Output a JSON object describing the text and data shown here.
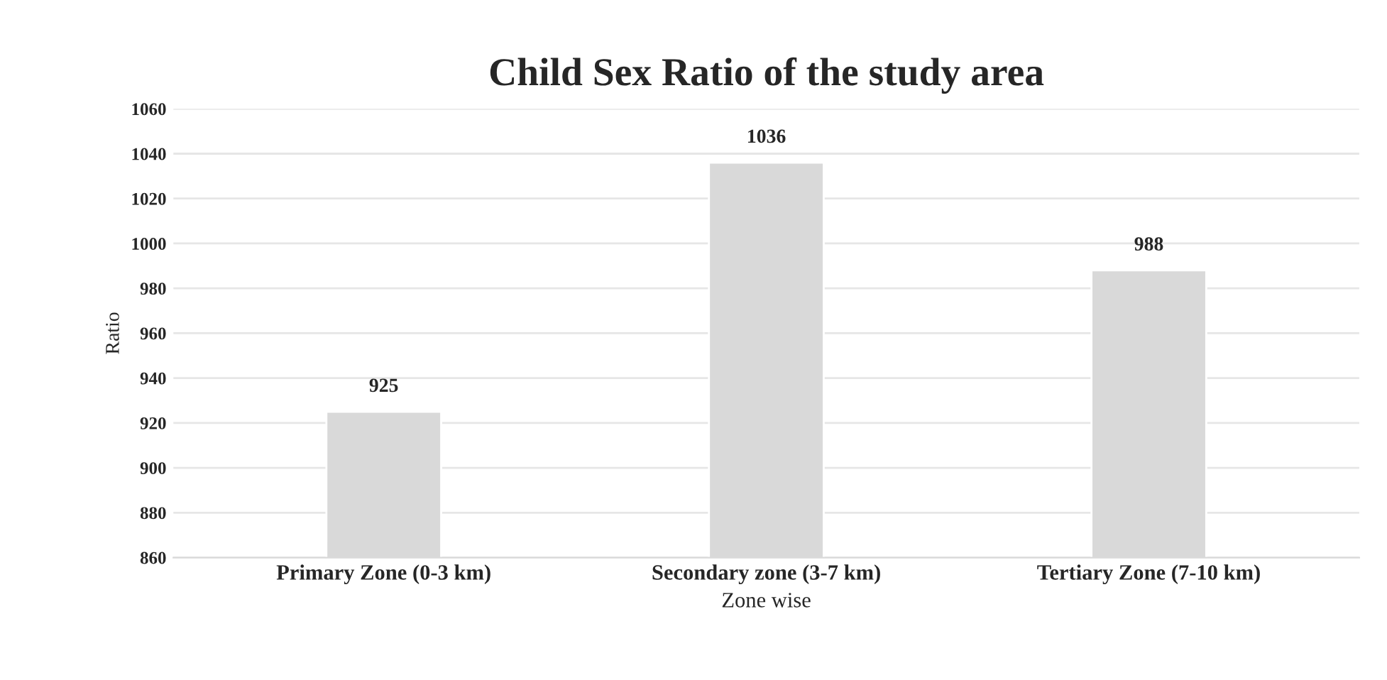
{
  "chart_data": {
    "type": "bar",
    "title": "Child Sex Ratio of the study area",
    "xlabel": "Zone wise",
    "ylabel": "Ratio",
    "categories": [
      "Primary Zone (0-3 km)",
      "Secondary zone (3-7 km)",
      "Tertiary Zone (7-10 km)"
    ],
    "values": [
      925,
      1036,
      988
    ],
    "color": "#d9d9d9",
    "ylim": [
      860,
      1060
    ],
    "yticks": [
      860,
      880,
      900,
      920,
      940,
      960,
      980,
      1000,
      1020,
      1040,
      1060
    ],
    "grid": "y",
    "data_labels": true
  }
}
